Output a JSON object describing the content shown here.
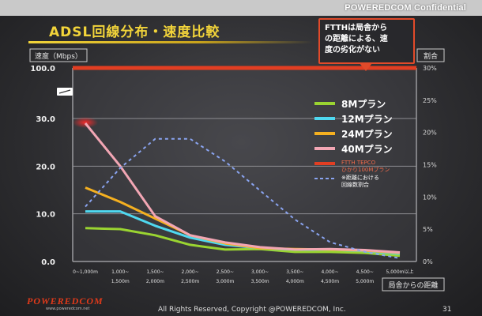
{
  "header": {
    "confidential": "POWEREDCOM Confidential",
    "title": "ADSL回線分布・速度比較"
  },
  "callout": {
    "lines": [
      "FTTHは局舎から",
      "の距離による、速",
      "度の劣化がない"
    ]
  },
  "footer": {
    "logo": "POWEREDCOM",
    "site": "www.poweredcom.net",
    "copyright": "All Rights Reserved, Copyright @POWEREDCOM, Inc.",
    "page_number": "31"
  },
  "chart_data": {
    "type": "line",
    "left_axis": {
      "label": "速度（Mbps）",
      "ticks": [
        "0.0",
        "10.0",
        "20.0",
        "30.0",
        "100.0"
      ],
      "tick_values": [
        0,
        10,
        20,
        30,
        100
      ],
      "broken": true
    },
    "right_axis": {
      "label": "割合",
      "ticks": [
        "0%",
        "5%",
        "10%",
        "15%",
        "20%",
        "25%",
        "30%"
      ],
      "ylim": [
        0,
        30
      ]
    },
    "x_axis": {
      "label": "局舎からの距離",
      "categories": [
        [
          "0~1,000m",
          ""
        ],
        [
          "1,000~",
          "1,500m"
        ],
        [
          "1,500~",
          "2,000m"
        ],
        [
          "2,000~",
          "2,500m"
        ],
        [
          "2,500~",
          "3,000m"
        ],
        [
          "3,000~",
          "3,500m"
        ],
        [
          "3,500~",
          "4,000m"
        ],
        [
          "4,000~",
          "4,500m"
        ],
        [
          "4,500~",
          "5,000m"
        ],
        [
          "5,000m以上",
          ""
        ]
      ]
    },
    "series": [
      {
        "name": "8Mプラン",
        "color": "#9ad431",
        "axis": "left",
        "values": [
          7.0,
          6.8,
          5.5,
          3.5,
          2.5,
          2.6,
          2.0,
          2.0,
          1.8,
          1.2
        ]
      },
      {
        "name": "12Mプラン",
        "color": "#4fd8f0",
        "axis": "left",
        "values": [
          10.5,
          10.5,
          7.5,
          5.0,
          3.5,
          2.8,
          2.5,
          2.5,
          2.2,
          1.6
        ]
      },
      {
        "name": "24Mプラン",
        "color": "#f5b020",
        "axis": "left",
        "values": [
          15.5,
          12.5,
          9.0,
          5.5,
          3.8,
          2.8,
          2.6,
          2.5,
          2.3,
          1.8
        ]
      },
      {
        "name": "40Mプラン",
        "color": "#f2a6b4",
        "axis": "left",
        "values": [
          29.0,
          20.0,
          9.5,
          5.5,
          4.0,
          3.0,
          2.5,
          2.6,
          2.4,
          1.9
        ]
      },
      {
        "name": "FTTH TEPCO",
        "name2": "ひかり100Mプラン",
        "color": "#e23e22",
        "axis": "left",
        "values": [
          100,
          100,
          100,
          100,
          100,
          100,
          100,
          100,
          100,
          100
        ]
      },
      {
        "name": "※距離における",
        "name2": "回線数割合",
        "color": "#8aa4f0",
        "axis": "right",
        "dashed": true,
        "values": [
          8.5,
          14.5,
          19,
          19,
          15.5,
          11,
          6.5,
          3,
          1.5,
          0.5
        ]
      }
    ],
    "grid": true,
    "legend_position": "right"
  }
}
